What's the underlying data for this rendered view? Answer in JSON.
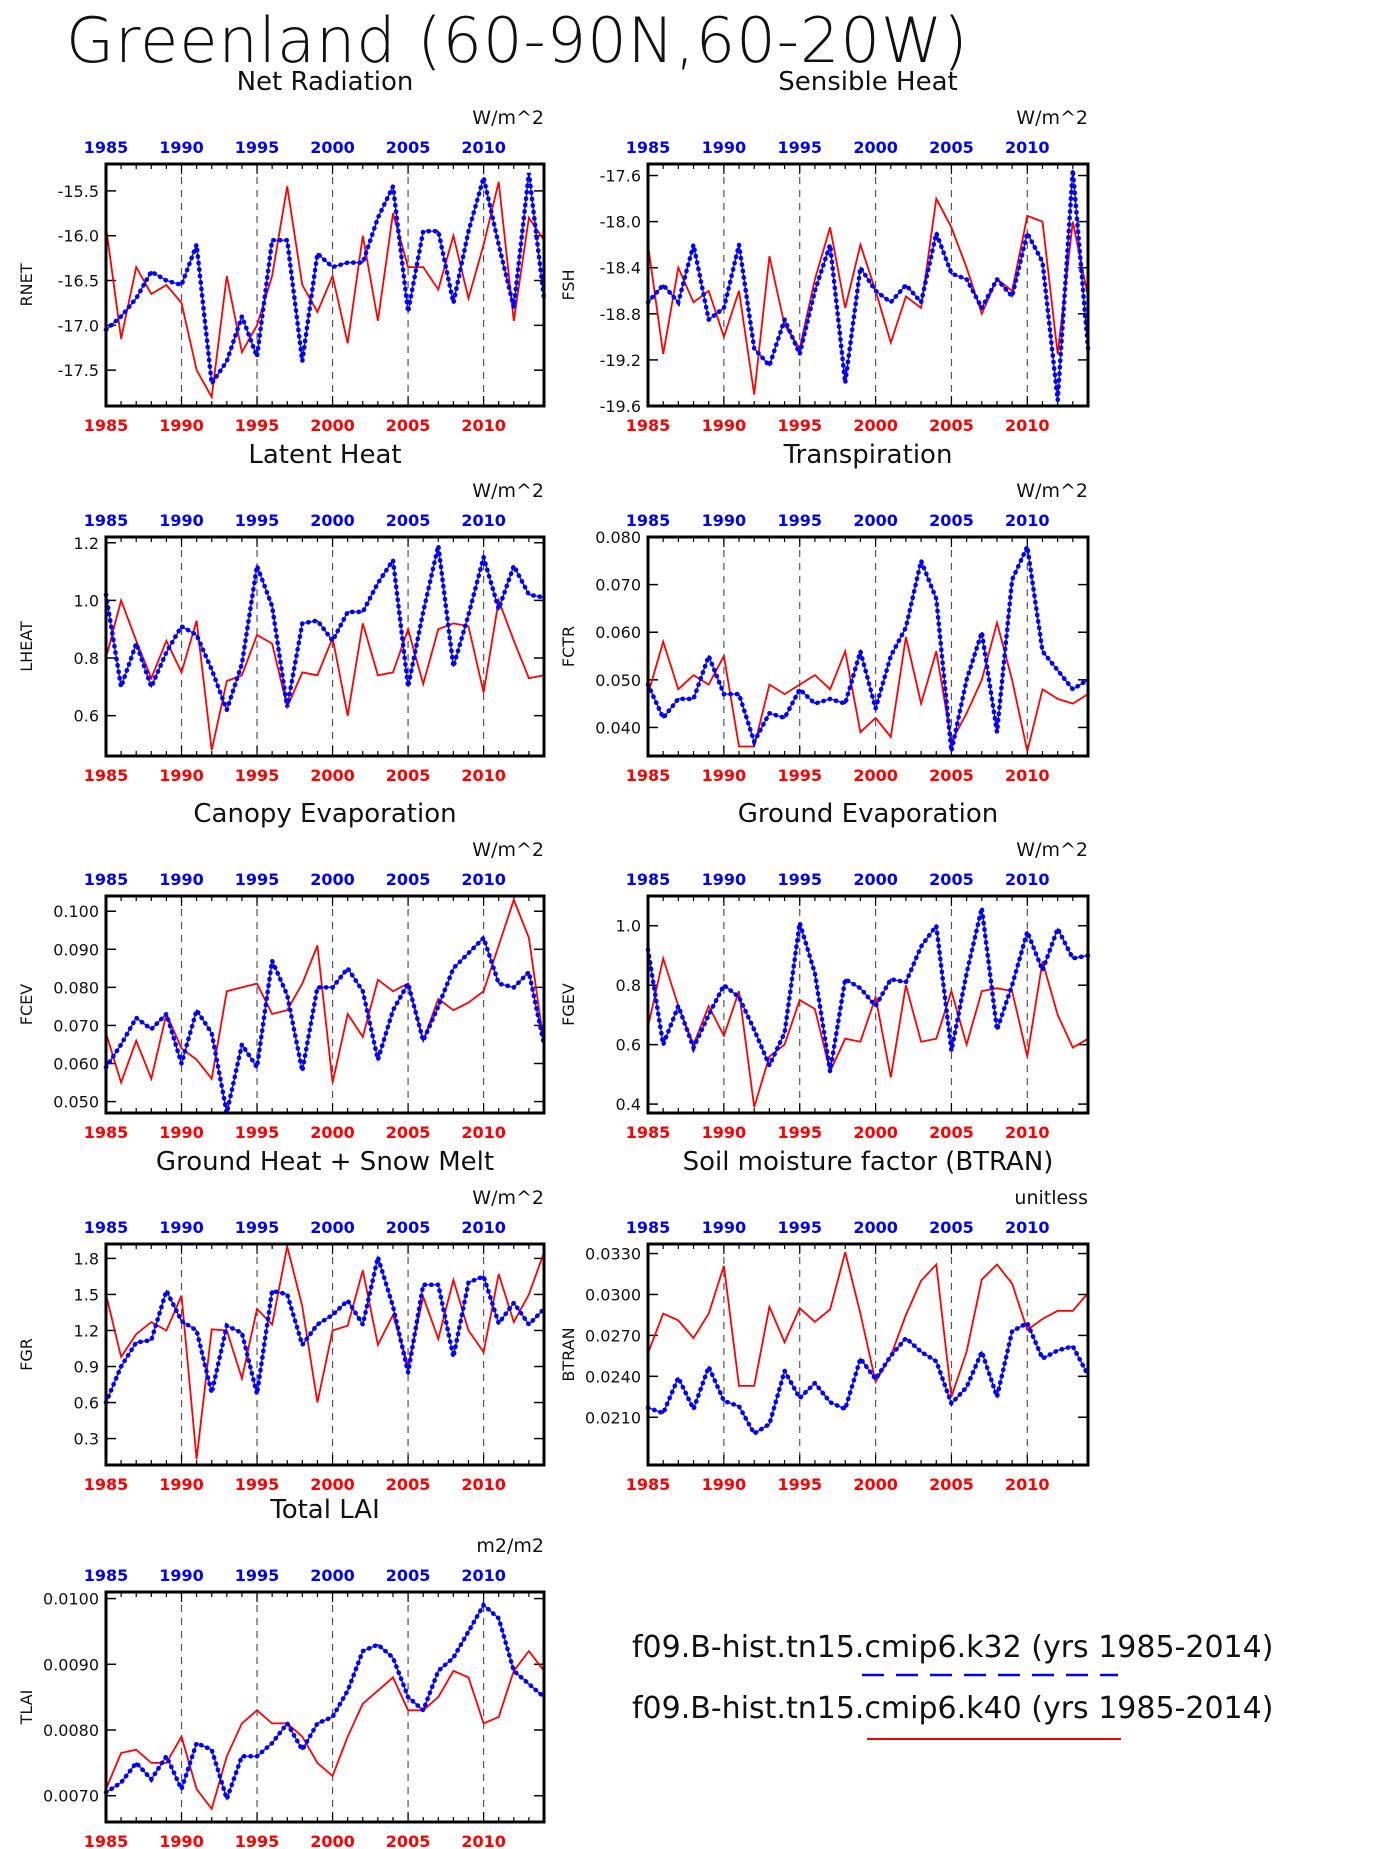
{
  "title": "Greenland (60-90N,60-20W)",
  "colors": {
    "case_a": "#0000ff",
    "case_b": "#ff0000",
    "axis": "#000000"
  },
  "legend": {
    "case_a": "f09.B-hist.tn15.cmip6.k32 (yrs 1985-2014)",
    "case_b": "f09.B-hist.tn15.cmip6.k40 (yrs 1985-2014)"
  },
  "chart_data": [
    {
      "type": "line",
      "title": "Net Radiation",
      "ylabel": "RNET",
      "units": "W/m^2",
      "xlim": [
        1985,
        2014
      ],
      "ylim": [
        -17.9,
        -15.2
      ],
      "xticks": [
        "1985",
        "1990",
        "1995",
        "2000",
        "2005",
        "2010"
      ],
      "yticks": [
        -17.5,
        -17.0,
        -16.5,
        -16.0,
        -15.5
      ],
      "ytick_labels": [
        "-17.5",
        "-17.0",
        "-16.5",
        "-16.0",
        "-15.5"
      ],
      "vlines": [
        1990,
        1995,
        2000,
        2005,
        2010
      ],
      "series": [
        {
          "values": [
            -17.05,
            -16.9,
            -16.7,
            -16.4,
            -16.5,
            -16.55,
            -16.1,
            -17.65,
            -17.4,
            -16.9,
            -17.35,
            -16.05,
            -16.05,
            -17.4,
            -16.2,
            -16.35,
            -16.3,
            -16.3,
            -15.8,
            -15.45,
            -16.85,
            -15.95,
            -15.95,
            -16.75,
            -15.95,
            -15.35,
            -16.1,
            -16.8,
            -15.3,
            -16.7
          ]
        },
        {
          "values": [
            -15.9,
            -17.15,
            -16.35,
            -16.65,
            -16.55,
            -16.75,
            -17.5,
            -17.8,
            -16.45,
            -17.3,
            -17.0,
            -16.45,
            -15.45,
            -16.55,
            -16.85,
            -16.45,
            -17.2,
            -16.0,
            -16.95,
            -15.75,
            -16.35,
            -16.35,
            -16.6,
            -16.0,
            -16.7,
            -16.1,
            -15.4,
            -16.95,
            -15.8,
            -16.05
          ]
        }
      ]
    },
    {
      "type": "line",
      "title": "Sensible Heat",
      "ylabel": "FSH",
      "units": "W/m^2",
      "xlim": [
        1985,
        2014
      ],
      "ylim": [
        -19.6,
        -17.5
      ],
      "xticks": [
        "1985",
        "1990",
        "1995",
        "2000",
        "2005",
        "2010"
      ],
      "yticks": [
        -19.6,
        -19.2,
        -18.8,
        -18.4,
        -18.0,
        -17.6
      ],
      "ytick_labels": [
        "-19.6",
        "-19.2",
        "-18.8",
        "-18.4",
        "-18.0",
        "-17.6"
      ],
      "vlines": [
        1990,
        1995,
        2000,
        2005,
        2010
      ],
      "series": [
        {
          "values": [
            -18.7,
            -18.55,
            -18.7,
            -18.2,
            -18.85,
            -18.75,
            -18.2,
            -19.1,
            -19.25,
            -18.85,
            -19.15,
            -18.6,
            -18.2,
            -19.4,
            -18.4,
            -18.6,
            -18.7,
            -18.55,
            -18.7,
            -18.1,
            -18.45,
            -18.5,
            -18.75,
            -18.5,
            -18.65,
            -18.1,
            -18.35,
            -19.55,
            -17.55,
            -19.1
          ]
        },
        {
          "values": [
            -18.2,
            -19.15,
            -18.4,
            -18.7,
            -18.6,
            -19.0,
            -18.6,
            -19.5,
            -18.3,
            -18.9,
            -19.1,
            -18.5,
            -18.05,
            -18.75,
            -18.2,
            -18.6,
            -19.05,
            -18.65,
            -18.75,
            -17.8,
            -18.05,
            -18.4,
            -18.8,
            -18.5,
            -18.6,
            -17.95,
            -18.0,
            -19.15,
            -18.0,
            -18.65
          ]
        }
      ]
    },
    {
      "type": "line",
      "title": "Latent Heat",
      "ylabel": "LHEAT",
      "units": "W/m^2",
      "xlim": [
        1985,
        2014
      ],
      "ylim": [
        0.46,
        1.22
      ],
      "xticks": [
        "1985",
        "1990",
        "1995",
        "2000",
        "2005",
        "2010"
      ],
      "yticks": [
        0.6,
        0.8,
        1.0,
        1.2
      ],
      "ytick_labels": [
        "0.6",
        "0.8",
        "1.0",
        "1.2"
      ],
      "vlines": [
        1990,
        1995,
        2000,
        2005,
        2010
      ],
      "series": [
        {
          "values": [
            1.02,
            0.7,
            0.85,
            0.7,
            0.82,
            0.91,
            0.88,
            0.76,
            0.62,
            0.78,
            1.12,
            0.98,
            0.63,
            0.92,
            0.93,
            0.86,
            0.96,
            0.96,
            1.06,
            1.14,
            0.7,
            0.96,
            1.19,
            0.77,
            0.95,
            1.15,
            0.97,
            1.12,
            1.02,
            1.01
          ]
        },
        {
          "values": [
            0.8,
            1.0,
            0.86,
            0.73,
            0.86,
            0.75,
            0.93,
            0.48,
            0.72,
            0.74,
            0.88,
            0.85,
            0.63,
            0.75,
            0.74,
            0.87,
            0.6,
            0.92,
            0.74,
            0.75,
            0.9,
            0.71,
            0.9,
            0.92,
            0.91,
            0.68,
            1.0,
            0.86,
            0.73,
            0.74
          ]
        }
      ]
    },
    {
      "type": "line",
      "title": "Transpiration",
      "ylabel": "FCTR",
      "units": "W/m^2",
      "xlim": [
        1985,
        2014
      ],
      "ylim": [
        0.034,
        0.08
      ],
      "xticks": [
        "1985",
        "1990",
        "1995",
        "2000",
        "2005",
        "2010"
      ],
      "yticks": [
        0.04,
        0.05,
        0.06,
        0.07,
        0.08
      ],
      "ytick_labels": [
        "0.040",
        "0.050",
        "0.060",
        "0.070",
        "0.080"
      ],
      "vlines": [
        1990,
        1995,
        2000,
        2005,
        2010
      ],
      "series": [
        {
          "values": [
            0.049,
            0.042,
            0.046,
            0.046,
            0.055,
            0.047,
            0.047,
            0.037,
            0.043,
            0.042,
            0.048,
            0.045,
            0.046,
            0.045,
            0.056,
            0.044,
            0.055,
            0.061,
            0.075,
            0.067,
            0.035,
            0.05,
            0.06,
            0.039,
            0.071,
            0.078,
            0.056,
            0.052,
            0.048,
            0.05
          ]
        },
        {
          "values": [
            0.047,
            0.058,
            0.048,
            0.051,
            0.049,
            0.055,
            0.036,
            0.036,
            0.049,
            0.047,
            0.049,
            0.051,
            0.048,
            0.056,
            0.039,
            0.042,
            0.038,
            0.059,
            0.045,
            0.056,
            0.037,
            0.043,
            0.05,
            0.062,
            0.05,
            0.035,
            0.048,
            0.046,
            0.045,
            0.047
          ]
        }
      ]
    },
    {
      "type": "line",
      "title": "Canopy Evaporation",
      "ylabel": "FCEV",
      "units": "W/m^2",
      "xlim": [
        1985,
        2014
      ],
      "ylim": [
        0.047,
        0.104
      ],
      "xticks": [
        "1985",
        "1990",
        "1995",
        "2000",
        "2005",
        "2010"
      ],
      "yticks": [
        0.05,
        0.06,
        0.07,
        0.08,
        0.09,
        0.1
      ],
      "ytick_labels": [
        "0.050",
        "0.060",
        "0.070",
        "0.080",
        "0.090",
        "0.100"
      ],
      "vlines": [
        1990,
        1995,
        2000,
        2005,
        2010
      ],
      "series": [
        {
          "values": [
            0.059,
            0.065,
            0.072,
            0.069,
            0.073,
            0.06,
            0.074,
            0.068,
            0.047,
            0.065,
            0.059,
            0.087,
            0.078,
            0.058,
            0.08,
            0.08,
            0.085,
            0.079,
            0.061,
            0.074,
            0.081,
            0.066,
            0.075,
            0.085,
            0.089,
            0.093,
            0.081,
            0.08,
            0.084,
            0.065
          ]
        },
        {
          "values": [
            0.068,
            0.055,
            0.066,
            0.056,
            0.073,
            0.064,
            0.061,
            0.056,
            0.079,
            0.08,
            0.081,
            0.073,
            0.074,
            0.081,
            0.091,
            0.055,
            0.073,
            0.067,
            0.082,
            0.079,
            0.081,
            0.066,
            0.077,
            0.074,
            0.076,
            0.079,
            0.091,
            0.103,
            0.093,
            0.065
          ]
        }
      ]
    },
    {
      "type": "line",
      "title": "Ground Evaporation",
      "ylabel": "FGEV",
      "units": "W/m^2",
      "xlim": [
        1985,
        2014
      ],
      "ylim": [
        0.37,
        1.1
      ],
      "xticks": [
        "1985",
        "1990",
        "1995",
        "2000",
        "2005",
        "2010"
      ],
      "yticks": [
        0.4,
        0.6,
        0.8,
        1.0
      ],
      "ytick_labels": [
        "0.4",
        "0.6",
        "0.8",
        "1.0"
      ],
      "vlines": [
        1990,
        1995,
        2000,
        2005,
        2010
      ],
      "series": [
        {
          "values": [
            0.92,
            0.6,
            0.73,
            0.59,
            0.7,
            0.8,
            0.76,
            0.65,
            0.53,
            0.64,
            1.01,
            0.84,
            0.51,
            0.82,
            0.79,
            0.73,
            0.82,
            0.81,
            0.93,
            1.0,
            0.58,
            0.84,
            1.06,
            0.65,
            0.8,
            0.98,
            0.85,
            0.99,
            0.89,
            0.9
          ]
        },
        {
          "values": [
            0.66,
            0.89,
            0.73,
            0.6,
            0.73,
            0.63,
            0.78,
            0.39,
            0.56,
            0.6,
            0.75,
            0.72,
            0.51,
            0.62,
            0.61,
            0.76,
            0.49,
            0.8,
            0.61,
            0.62,
            0.78,
            0.6,
            0.78,
            0.79,
            0.78,
            0.56,
            0.88,
            0.7,
            0.59,
            0.62
          ]
        }
      ]
    },
    {
      "type": "line",
      "title": "Ground Heat + Snow Melt",
      "ylabel": "FGR",
      "units": "W/m^2",
      "xlim": [
        1985,
        2014
      ],
      "ylim": [
        0.08,
        1.92
      ],
      "xticks": [
        "1985",
        "1990",
        "1995",
        "2000",
        "2005",
        "2010"
      ],
      "yticks": [
        0.3,
        0.6,
        0.9,
        1.2,
        1.5,
        1.8
      ],
      "ytick_labels": [
        "0.3",
        "0.6",
        "0.9",
        "1.2",
        "1.5",
        "1.8"
      ],
      "vlines": [
        1990,
        1995,
        2000,
        2005,
        2010
      ],
      "series": [
        {
          "values": [
            0.6,
            0.9,
            1.1,
            1.12,
            1.53,
            1.28,
            1.2,
            0.68,
            1.24,
            1.18,
            0.67,
            1.53,
            1.5,
            1.08,
            1.25,
            1.33,
            1.45,
            1.25,
            1.81,
            1.4,
            0.85,
            1.58,
            1.58,
            0.98,
            1.6,
            1.65,
            1.26,
            1.43,
            1.25,
            1.38
          ]
        },
        {
          "values": [
            1.5,
            0.98,
            1.17,
            1.27,
            1.2,
            1.49,
            0.13,
            1.21,
            1.2,
            0.8,
            1.38,
            1.25,
            1.9,
            1.4,
            0.6,
            1.2,
            1.24,
            1.7,
            1.08,
            1.33,
            0.91,
            1.48,
            1.13,
            1.62,
            1.2,
            1.02,
            1.67,
            1.27,
            1.5,
            1.85
          ]
        }
      ]
    },
    {
      "type": "line",
      "title": "Soil moisture factor (BTRAN)",
      "ylabel": "BTRAN",
      "units": "unitless",
      "xlim": [
        1985,
        2014
      ],
      "ylim": [
        0.0175,
        0.0337
      ],
      "xticks": [
        "1985",
        "1990",
        "1995",
        "2000",
        "2005",
        "2010"
      ],
      "yticks": [
        0.021,
        0.024,
        0.027,
        0.03,
        0.033
      ],
      "ytick_labels": [
        "0.0210",
        "0.0240",
        "0.0270",
        "0.0300",
        "0.0330"
      ],
      "vlines": [
        1990,
        1995,
        2000,
        2005,
        2010
      ],
      "series": [
        {
          "values": [
            0.0217,
            0.0213,
            0.0239,
            0.0216,
            0.0247,
            0.0222,
            0.0218,
            0.0198,
            0.0205,
            0.0244,
            0.0224,
            0.0235,
            0.0221,
            0.0216,
            0.0253,
            0.0238,
            0.0255,
            0.0268,
            0.0258,
            0.0251,
            0.022,
            0.0232,
            0.0258,
            0.0225,
            0.0273,
            0.0279,
            0.0253,
            0.0259,
            0.0262,
            0.0241
          ]
        },
        {
          "values": [
            0.0257,
            0.0286,
            0.0281,
            0.0268,
            0.0286,
            0.0321,
            0.0233,
            0.0233,
            0.0291,
            0.0265,
            0.029,
            0.028,
            0.0289,
            0.0331,
            0.0286,
            0.0236,
            0.0255,
            0.0285,
            0.031,
            0.0322,
            0.0225,
            0.0258,
            0.0311,
            0.0322,
            0.0308,
            0.0274,
            0.0282,
            0.0288,
            0.0288,
            0.0301
          ]
        }
      ]
    },
    {
      "type": "line",
      "title": "Total LAI",
      "ylabel": "TLAI",
      "units": "m2/m2",
      "xlim": [
        1985,
        2014
      ],
      "ylim": [
        0.0066,
        0.0101
      ],
      "xticks": [
        "1985",
        "1990",
        "1995",
        "2000",
        "2005",
        "2010"
      ],
      "yticks": [
        0.007,
        0.008,
        0.009,
        0.01
      ],
      "ytick_labels": [
        "0.0070",
        "0.0080",
        "0.0090",
        "0.0100"
      ],
      "vlines": [
        1990,
        1995,
        2000,
        2005,
        2010
      ],
      "series": [
        {
          "values": [
            0.00705,
            0.0072,
            0.0075,
            0.00725,
            0.0076,
            0.0071,
            0.0078,
            0.0077,
            0.00695,
            0.0076,
            0.0076,
            0.0078,
            0.0081,
            0.0077,
            0.0081,
            0.0082,
            0.0086,
            0.0092,
            0.0093,
            0.0091,
            0.0085,
            0.0083,
            0.0089,
            0.0091,
            0.0095,
            0.0099,
            0.0097,
            0.0089,
            0.0087,
            0.0085
          ]
        },
        {
          "values": [
            0.0071,
            0.00765,
            0.0077,
            0.0075,
            0.0075,
            0.0079,
            0.0071,
            0.0068,
            0.0076,
            0.0081,
            0.0083,
            0.0081,
            0.0081,
            0.0079,
            0.0075,
            0.0073,
            0.0079,
            0.0084,
            0.0086,
            0.0088,
            0.0083,
            0.0083,
            0.0085,
            0.0089,
            0.0088,
            0.0081,
            0.0082,
            0.0089,
            0.0092,
            0.0089
          ]
        }
      ]
    }
  ]
}
